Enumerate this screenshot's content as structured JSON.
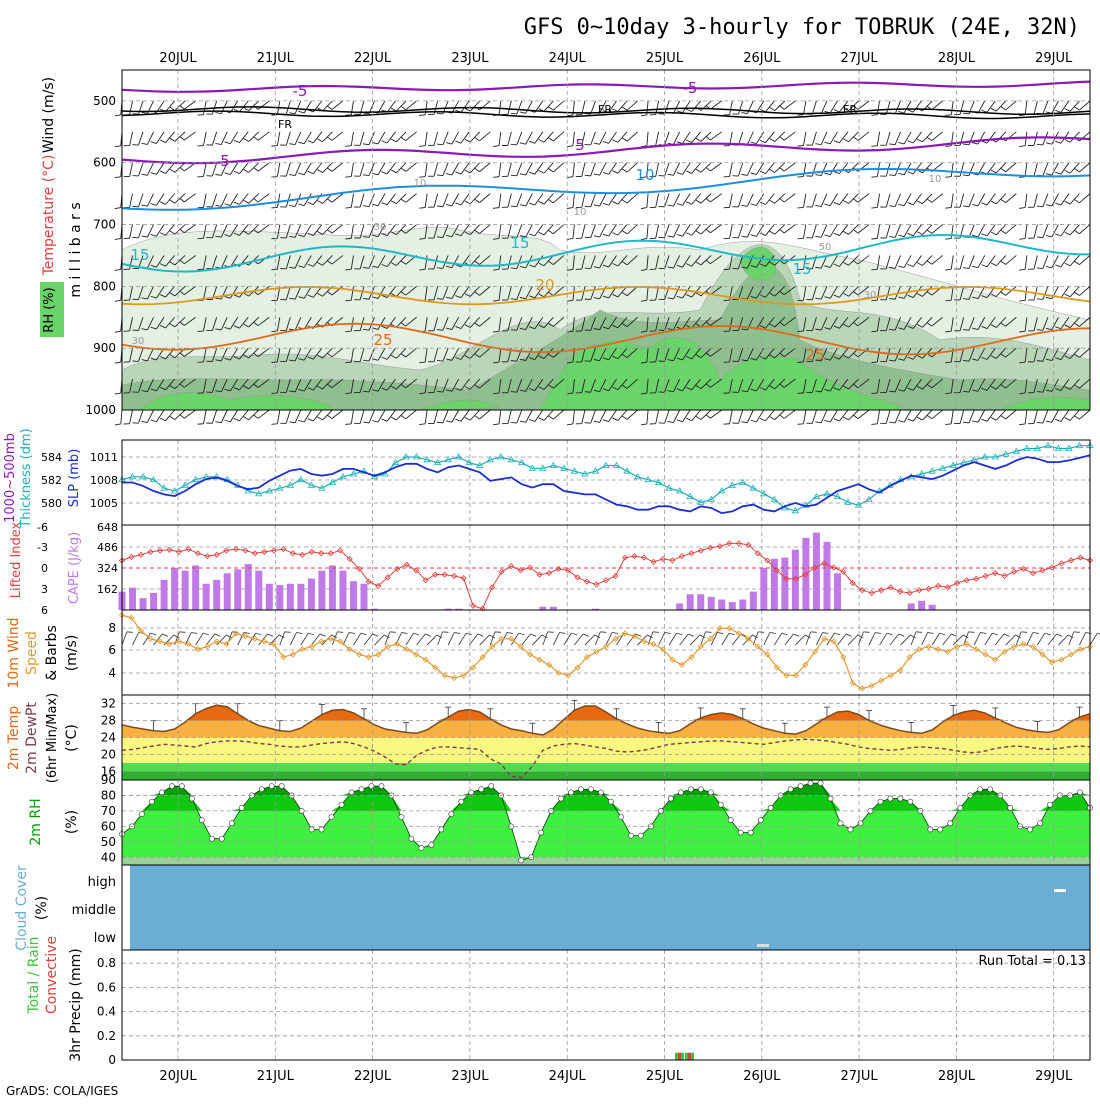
{
  "title": "GFS 0~10day 3-hourly for TOBRUK (24E, 32N)",
  "credit": "GrADS: COLA/IGES",
  "colors": {
    "wind_barb": "#222222",
    "rh_fill_light": "#e4f0e4",
    "rh_fill_mid": "#b9d6b9",
    "rh_fill_dark": "#8fbf8f",
    "rh_fill_green": "#6ad36a",
    "purple": "#8a1ab4",
    "blue": "#1e8fdc",
    "cyan": "#20b8c8",
    "orange": "#e09a1a",
    "dark_orange": "#e06a1a",
    "slp": "#1a2fcc",
    "thickness": "#20b0b8",
    "li": "#e04040",
    "cape": "#c07ae8",
    "wind_speed": "#e09a30",
    "temp_fill_dark": "#e86a10",
    "temp_fill_light": "#f8b040",
    "dew_fill_yellow": "#f8f880",
    "dew_fill_green": "#50dc50",
    "rh_green_dark": "#00a000",
    "rh_green_light": "#40f040",
    "cloud_bg": "#6aaed6",
    "precip_green": "#40c040",
    "precip_red": "#e04040"
  },
  "dates": [
    "20JUL",
    "21JUL",
    "22JUL",
    "23JUL",
    "24JUL",
    "25JUL",
    "26JUL",
    "27JUL",
    "28JUL",
    "29JUL"
  ],
  "panels": {
    "upper_air": {
      "y_label": "m i l l i b a r s",
      "rh_label": "RH (%)",
      "temp_label": "Temperature (°C)",
      "wind_label": "Wind (m/s)",
      "y_ticks": [
        "500",
        "600",
        "700",
        "800",
        "900",
        "1000"
      ],
      "contour_labels": [
        {
          "text": "-5",
          "color": "purple"
        },
        {
          "text": "-5",
          "color": "purple"
        },
        {
          "text": "FR",
          "color": "black"
        },
        {
          "text": "FR",
          "color": "black"
        },
        {
          "text": "FR",
          "color": "black"
        },
        {
          "text": "5",
          "color": "purple"
        },
        {
          "text": "5",
          "color": "purple"
        },
        {
          "text": "10",
          "color": "blue"
        },
        {
          "text": "15",
          "color": "cyan"
        },
        {
          "text": "15",
          "color": "cyan"
        },
        {
          "text": "15",
          "color": "cyan"
        },
        {
          "text": "20",
          "color": "orange"
        },
        {
          "text": "25",
          "color": "dark_orange"
        },
        {
          "text": "25",
          "color": "dark_orange"
        },
        {
          "text": "10",
          "color": "gray"
        },
        {
          "text": "10",
          "color": "gray"
        },
        {
          "text": "10",
          "color": "gray"
        },
        {
          "text": "30",
          "color": "gray"
        },
        {
          "text": "30",
          "color": "gray"
        },
        {
          "text": "30",
          "color": "gray"
        },
        {
          "text": "50",
          "color": "gray"
        }
      ]
    },
    "slp": {
      "label_left": "1000~500mb",
      "label_left2": "Thickness (dm)",
      "label_right": "SLP (mb)",
      "thick_ticks": [
        "584",
        "582",
        "580"
      ],
      "slp_ticks": [
        "1011",
        "1008",
        "1005"
      ]
    },
    "cape": {
      "label_left": "Lifted Index",
      "label_right": "CAPE (J/kg)",
      "li_ticks": [
        "-6",
        "-3",
        "0",
        "3",
        "6"
      ],
      "cape_ticks": [
        "648",
        "486",
        "324",
        "162"
      ]
    },
    "wind10": {
      "label1": "10m Wind",
      "label2": "Speed",
      "label3": "& Barbs",
      "units": "(m/s)",
      "y_ticks": [
        "8",
        "6",
        "4"
      ]
    },
    "temp": {
      "label1": "2m Temp",
      "label2": "2m DewPt",
      "label3": "(6hr Min/Max)",
      "units": "(°C)",
      "y_ticks": [
        "32",
        "28",
        "24",
        "20",
        "16"
      ]
    },
    "rh2m": {
      "label": "2m RH",
      "units": "(%)",
      "y_ticks": [
        "90",
        "80",
        "70",
        "60",
        "50",
        "40"
      ]
    },
    "cloud": {
      "label": "Cloud Cover",
      "units": "(%)",
      "levels": [
        "high",
        "middle",
        "low"
      ]
    },
    "precip": {
      "label1": "Total / Rain",
      "label2": "Convective",
      "label_right": "3hr Precip (mm)",
      "y_ticks": [
        "0.8",
        "0.6",
        "0.4",
        "0.2",
        "0"
      ],
      "run_total": "Run Total = 0.13"
    }
  },
  "chart_data": [
    {
      "type": "line",
      "name": "slp",
      "ylabel": "SLP (mb)",
      "ylim": [
        1003,
        1013
      ],
      "x_start": "19JUL 12Z",
      "x_step_hours": 3,
      "values": [
        1008.0,
        1008.0,
        1007.6,
        1007.0,
        1006.6,
        1006.4,
        1007.0,
        1007.8,
        1008.4,
        1008.6,
        1008.2,
        1007.6,
        1007.2,
        1007.4,
        1008.2,
        1008.8,
        1009.4,
        1009.6,
        1009.0,
        1008.8,
        1009.0,
        1009.6,
        1009.6,
        1009.2,
        1008.8,
        1009.2,
        1009.8,
        1010.2,
        1010.2,
        1009.6,
        1009.2,
        1009.8,
        1010.0,
        1009.6,
        1009.2,
        1008.2,
        1008.4,
        1008.6,
        1007.8,
        1007.4,
        1007.8,
        1007.8,
        1007.0,
        1006.8,
        1006.6,
        1006.6,
        1006.0,
        1005.4,
        1005.2,
        1004.8,
        1004.8,
        1005.2,
        1005.2,
        1004.8,
        1004.6,
        1005.2,
        1005.0,
        1004.4,
        1004.6,
        1005.2,
        1005.4,
        1004.8,
        1004.6,
        1005.2,
        1005.6,
        1005.2,
        1005.4,
        1006.2,
        1007.0,
        1007.4,
        1007.8,
        1007.2,
        1006.8,
        1007.6,
        1008.2,
        1008.8,
        1008.6,
        1008.4,
        1008.8,
        1009.4,
        1010.0,
        1010.4,
        1010.0,
        1009.6,
        1010.0,
        1010.6,
        1011.0,
        1010.8,
        1010.4,
        1010.4,
        1010.6,
        1010.9,
        1011.2
      ]
    },
    {
      "type": "line",
      "name": "thickness",
      "ylabel": "1000~500mb Thickness (dm)",
      "ylim": [
        579,
        585
      ],
      "x_start": "19JUL 12Z",
      "x_step_hours": 3,
      "values": [
        582.2,
        582.4,
        582.4,
        582.2,
        581.6,
        581.4,
        581.8,
        582.2,
        582.4,
        582.4,
        582.2,
        581.8,
        581.4,
        581.2,
        581.4,
        581.6,
        581.8,
        582.2,
        581.8,
        581.6,
        582.0,
        582.4,
        582.6,
        582.8,
        582.4,
        582.6,
        583.4,
        583.8,
        583.8,
        583.6,
        583.4,
        583.6,
        583.8,
        583.4,
        583.2,
        583.6,
        583.8,
        583.6,
        583.4,
        583.0,
        583.0,
        583.2,
        583.0,
        582.8,
        582.6,
        582.8,
        583.2,
        583.2,
        582.8,
        582.4,
        582.2,
        582.0,
        581.6,
        581.4,
        581.0,
        580.6,
        580.8,
        581.4,
        581.8,
        582.0,
        581.6,
        581.2,
        580.8,
        580.2,
        580.0,
        580.4,
        581.0,
        581.2,
        581.0,
        580.6,
        580.4,
        580.8,
        581.4,
        581.8,
        582.2,
        582.4,
        582.6,
        582.8,
        583.0,
        583.2,
        583.4,
        583.6,
        583.8,
        583.8,
        584.0,
        584.2,
        584.4,
        584.4,
        584.6,
        584.4,
        584.4,
        584.6,
        584.6
      ]
    },
    {
      "type": "bar",
      "name": "cape",
      "ylabel": "CAPE (J/kg)",
      "ylim": [
        0,
        648
      ],
      "x_start": "19JUL 12Z",
      "x_step_hours": 3,
      "values": [
        140,
        170,
        90,
        130,
        230,
        320,
        300,
        340,
        200,
        230,
        280,
        310,
        350,
        300,
        200,
        190,
        200,
        200,
        240,
        300,
        340,
        300,
        220,
        200,
        10,
        0,
        0,
        0,
        0,
        0,
        0,
        10,
        10,
        0,
        0,
        0,
        0,
        0,
        0,
        0,
        25,
        25,
        0,
        0,
        0,
        10,
        0,
        0,
        0,
        0,
        0,
        0,
        0,
        50,
        120,
        120,
        100,
        80,
        60,
        80,
        140,
        320,
        390,
        400,
        460,
        550,
        590,
        520,
        280,
        0,
        0,
        0,
        0,
        0,
        0,
        50,
        70,
        40,
        0,
        0,
        0,
        0,
        0,
        0,
        0,
        0,
        0,
        0,
        0,
        0,
        0,
        0,
        0
      ]
    },
    {
      "type": "line",
      "name": "lifted_index",
      "ylabel": "Lifted Index",
      "ylim": [
        -6,
        6
      ],
      "x_start": "19JUL 12Z",
      "x_step_hours": 3,
      "values": [
        -1.0,
        -1.5,
        -1.8,
        -2.2,
        -2.4,
        -2.5,
        -2.2,
        -2.6,
        -2.0,
        -1.6,
        -1.8,
        -2.4,
        -2.6,
        -2.4,
        -2.0,
        -2.2,
        -2.4,
        -2.6,
        -2.0,
        -1.8,
        -2.2,
        -2.0,
        -2.0,
        -2.4,
        -1.2,
        0.2,
        2.0,
        2.6,
        1.4,
        0.2,
        -0.4,
        0.4,
        1.8,
        1.0,
        1.0,
        1.2,
        1.5,
        5.4,
        5.8,
        2.8,
        0.6,
        -0.2,
        0.4,
        0.0,
        1.0,
        0.8,
        0.2,
        0.4,
        1.4,
        2.0,
        2.4,
        1.8,
        1.2,
        -1.4,
        -1.6,
        -1.4,
        -0.8,
        -1.2,
        -1.0,
        -1.6,
        -2.0,
        -2.4,
        -2.8,
        -3.0,
        -3.4,
        -3.4,
        -3.2,
        -2.0,
        -1.0,
        0.4,
        1.6,
        1.6,
        1.0,
        0.0,
        -0.6,
        0.0,
        0.6,
        2.2,
        3.2,
        3.6,
        3.2,
        2.8,
        3.4,
        3.6,
        3.2,
        3.0,
        2.6,
        2.8,
        2.2,
        1.8,
        1.6,
        1.2,
        0.8,
        1.2,
        0.6,
        0.2,
        0.8,
        0.4,
        0.0,
        -0.6,
        -1.0,
        -1.4,
        -1.0
      ]
    },
    {
      "type": "line",
      "name": "wind_speed_10m",
      "ylabel": "Speed (m/s)",
      "ylim": [
        2.5,
        9
      ],
      "x_start": "19JUL 12Z",
      "x_step_hours": 3,
      "values": [
        8.6,
        8.4,
        7.4,
        6.8,
        6.6,
        6.4,
        6.6,
        6.4,
        6.0,
        6.2,
        6.6,
        6.4,
        7.2,
        7.0,
        6.8,
        6.6,
        6.4,
        5.4,
        5.6,
        6.0,
        6.2,
        6.6,
        6.8,
        6.6,
        6.0,
        5.6,
        5.4,
        5.6,
        6.2,
        6.4,
        6.0,
        5.6,
        5.2,
        4.6,
        4.0,
        3.8,
        4.0,
        4.6,
        5.4,
        6.2,
        6.8,
        6.8,
        6.2,
        5.6,
        5.2,
        4.8,
        4.2,
        4.0,
        4.6,
        5.4,
        5.8,
        6.2,
        6.8,
        7.2,
        7.0,
        6.6,
        6.4,
        6.0,
        5.2,
        4.8,
        5.4,
        6.2,
        6.8,
        7.6,
        7.6,
        7.2,
        6.8,
        6.2,
        5.6,
        4.6,
        4.0,
        4.0,
        4.8,
        5.8,
        6.8,
        6.6,
        5.4,
        3.4,
        3.0,
        3.2,
        3.6,
        4.0,
        4.4,
        5.4,
        6.0,
        6.2,
        6.0,
        5.8,
        6.2,
        6.4,
        6.0,
        5.6,
        5.2,
        5.8,
        6.2,
        6.4,
        6.2,
        5.6,
        5.0,
        5.2,
        5.6,
        6.0,
        6.2
      ]
    },
    {
      "type": "area",
      "name": "temp_2m",
      "ylabel": "2m Temp (°C)",
      "ylim": [
        14,
        34
      ],
      "x_start": "19JUL 12Z",
      "x_step_hours": 3,
      "values": [
        27.0,
        26.4,
        26.0,
        25.6,
        25.4,
        26.0,
        27.6,
        29.6,
        30.8,
        31.6,
        31.2,
        29.6,
        28.0,
        26.8,
        26.2,
        25.6,
        25.4,
        26.2,
        27.8,
        29.4,
        30.4,
        30.6,
        29.8,
        28.4,
        27.0,
        26.0,
        25.6,
        25.2,
        25.0,
        25.8,
        27.4,
        28.8,
        30.2,
        30.6,
        30.0,
        28.4,
        27.0,
        26.0,
        25.6,
        25.0,
        24.6,
        26.0,
        28.2,
        30.4,
        31.4,
        31.4,
        30.0,
        28.4,
        27.2,
        26.2,
        25.6,
        25.2,
        25.0,
        25.6,
        27.2,
        28.6,
        29.4,
        29.8,
        29.4,
        28.4,
        27.2,
        26.2,
        25.6,
        25.0,
        24.8,
        25.6,
        27.2,
        28.8,
        30.0,
        30.2,
        29.4,
        28.0,
        27.0,
        26.2,
        25.6,
        25.2,
        25.0,
        25.8,
        27.6,
        29.2,
        30.0,
        30.4,
        29.8,
        28.6,
        27.4,
        26.4,
        25.8,
        25.4,
        25.2,
        25.8,
        27.4,
        28.8,
        29.6
      ]
    },
    {
      "type": "line",
      "name": "dewpoint_2m",
      "ylabel": "2m DewPt (°C)",
      "ylim": [
        14,
        34
      ],
      "x_start": "19JUL 12Z",
      "x_step_hours": 3,
      "values": [
        21.0,
        21.2,
        21.6,
        22.0,
        22.4,
        22.2,
        22.0,
        21.8,
        22.6,
        23.0,
        23.2,
        23.2,
        23.0,
        22.6,
        22.4,
        22.0,
        21.8,
        21.8,
        22.2,
        22.6,
        22.8,
        23.0,
        22.6,
        21.8,
        20.8,
        19.4,
        17.8,
        17.6,
        19.8,
        21.0,
        21.8,
        21.8,
        21.6,
        21.4,
        21.2,
        19.0,
        17.8,
        14.8,
        14.6,
        17.2,
        21.0,
        22.0,
        22.4,
        22.6,
        22.2,
        21.8,
        21.4,
        20.8,
        20.6,
        20.8,
        21.2,
        21.8,
        22.4,
        22.6,
        22.8,
        23.0,
        23.2,
        23.2,
        23.0,
        22.8,
        22.6,
        22.4,
        22.8,
        23.2,
        23.4,
        23.6,
        23.4,
        23.2,
        22.8,
        22.4,
        21.8,
        21.4,
        21.2,
        21.0,
        21.2,
        21.6,
        21.8,
        21.6,
        21.4,
        21.0,
        20.6,
        20.4,
        20.8,
        21.4,
        21.8,
        22.0,
        21.8,
        21.4,
        21.2,
        21.4,
        21.8,
        22.0,
        21.8
      ]
    },
    {
      "type": "area",
      "name": "rh_2m",
      "ylabel": "2m RH (%)",
      "ylim": [
        35,
        90
      ],
      "x_start": "19JUL 12Z",
      "x_step_hours": 3,
      "values": [
        55,
        60,
        68,
        76,
        82,
        86,
        86,
        78,
        64,
        52,
        52,
        62,
        72,
        80,
        84,
        86,
        86,
        80,
        70,
        58,
        58,
        66,
        74,
        82,
        84,
        86,
        86,
        80,
        66,
        52,
        46,
        48,
        58,
        68,
        76,
        82,
        84,
        86,
        80,
        60,
        38,
        40,
        56,
        70,
        78,
        82,
        84,
        84,
        82,
        76,
        66,
        54,
        54,
        60,
        70,
        78,
        82,
        84,
        84,
        82,
        74,
        64,
        56,
        56,
        64,
        72,
        80,
        84,
        86,
        88,
        88,
        78,
        62,
        58,
        62,
        70,
        76,
        78,
        78,
        76,
        70,
        58,
        58,
        62,
        72,
        80,
        84,
        84,
        80,
        72,
        60,
        58,
        62,
        74,
        80,
        80,
        82,
        72
      ]
    },
    {
      "type": "bar",
      "name": "precip_3hr",
      "ylabel": "3hr Precip (mm)",
      "ylim": [
        0,
        1.0
      ],
      "bars": [
        {
          "x": "25JUL 03Z",
          "value": 0.06
        },
        {
          "x": "25JUL 06Z",
          "value": 0.06
        }
      ]
    }
  ]
}
